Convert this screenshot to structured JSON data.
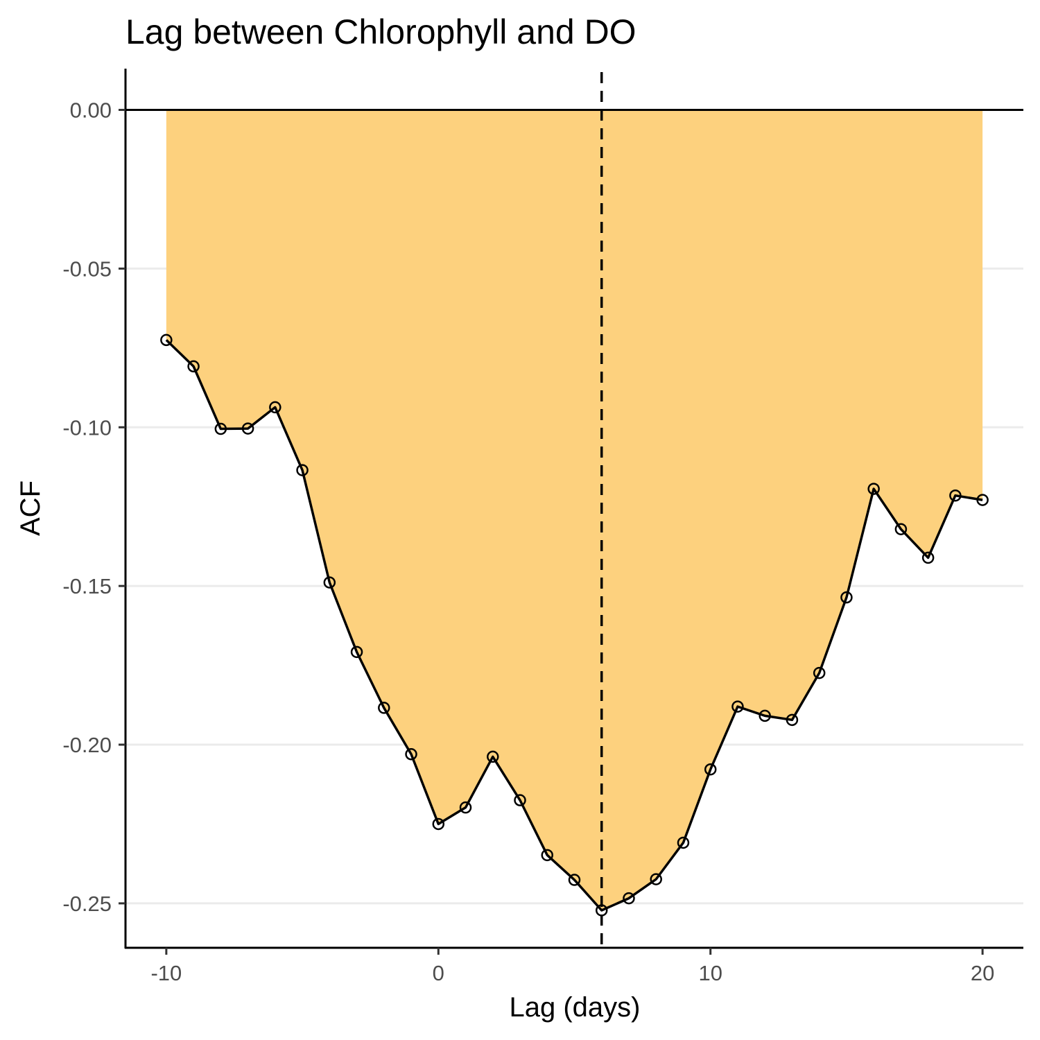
{
  "chart_data": {
    "type": "area",
    "title": "Lag between Chlorophyll and DO",
    "xlabel": "Lag (days)",
    "ylabel": "ACF",
    "xlim": [
      -11.5,
      21.5
    ],
    "ylim": [
      -0.264,
      0.013
    ],
    "x_ticks": [
      -10,
      0,
      10,
      20
    ],
    "x_tick_labels": [
      "-10",
      "0",
      "10",
      "20"
    ],
    "y_ticks": [
      0,
      -0.05,
      -0.1,
      -0.15,
      -0.2,
      -0.25
    ],
    "y_tick_labels": [
      "0.00",
      "-0.05",
      "-0.10",
      "-0.15",
      "-0.20",
      "-0.25"
    ],
    "grid": "horizontal major",
    "legend": "none",
    "fill_baseline": 0,
    "reference_line": {
      "x": 6,
      "style": "dashed"
    },
    "series": [
      {
        "x": [
          -10,
          -9,
          -8,
          -7,
          -6,
          -5,
          -4,
          -3,
          -2,
          -1,
          0,
          1,
          2,
          3,
          4,
          5,
          6,
          7,
          8,
          9,
          10,
          11,
          12,
          13,
          14,
          15,
          16,
          17,
          18,
          19,
          20
        ],
        "values": [
          -0.0725,
          -0.0808,
          -0.1005,
          -0.1004,
          -0.0937,
          -0.1135,
          -0.1489,
          -0.1708,
          -0.1884,
          -0.203,
          -0.225,
          -0.2198,
          -0.2038,
          -0.2175,
          -0.2348,
          -0.2426,
          -0.2522,
          -0.2484,
          -0.2424,
          -0.2309,
          -0.2078,
          -0.188,
          -0.1909,
          -0.1922,
          -0.1774,
          -0.1536,
          -0.1194,
          -0.1321,
          -0.1411,
          -0.1215,
          -0.1229
        ]
      }
    ],
    "colors": {
      "fill": "#fdd17e",
      "line": "#000000",
      "grid": "#ebebeb",
      "axis": "#000000",
      "tick_label": "#4d4d4d"
    }
  }
}
